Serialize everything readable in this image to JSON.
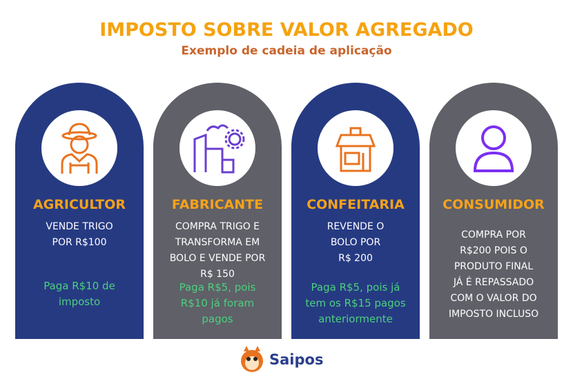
{
  "header": {
    "title": "IMPOSTO SOBRE VALOR AGREGADO",
    "subtitle": "Exemplo de cadeia de aplicação"
  },
  "cards": [
    {
      "title": "AGRICULTOR",
      "description": [
        "VENDE TRIGO",
        "POR R$100"
      ],
      "note": [
        "Paga R$10 de",
        "imposto"
      ]
    },
    {
      "title": "FABRICANTE",
      "description": [
        "COMPRA TRIGO E",
        "TRANSFORMA EM",
        "BOLO E VENDE POR",
        "R$ 150"
      ],
      "note": [
        "Paga R$5, pois",
        "R$10 já foram",
        "pagos"
      ]
    },
    {
      "title": "CONFEITARIA",
      "description": [
        "REVENDE O",
        "BOLO POR",
        "R$ 200"
      ],
      "note": [
        "Paga R$5, pois já",
        "tem os R$15 pagos",
        "anteriormente"
      ]
    },
    {
      "title": "CONSUMIDOR",
      "description": [
        "COMPRA POR",
        "R$200 POIS O",
        "PRODUTO FINAL",
        "JÁ É REPASSADO",
        "COM O VALOR DO",
        "IMPOSTO INCLUSO"
      ],
      "note": []
    }
  ],
  "brand": "Saipos"
}
